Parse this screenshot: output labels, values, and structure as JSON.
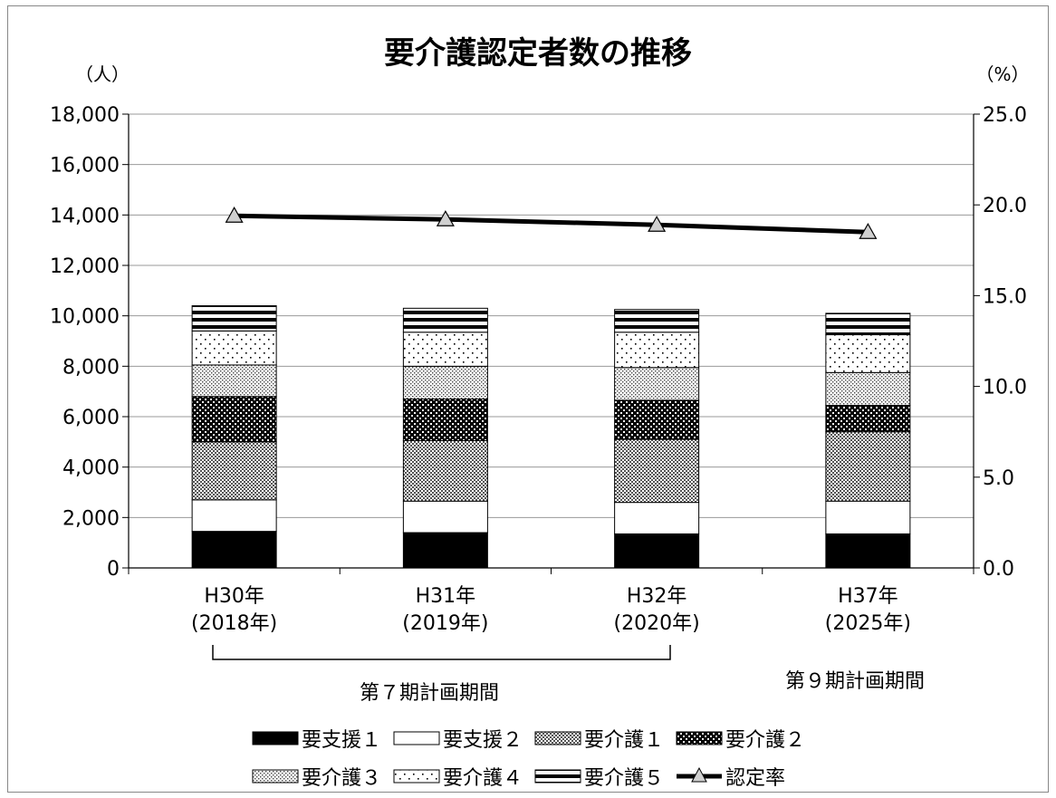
{
  "chart_data": {
    "type": "bar",
    "title": "要介護認定者数の推移",
    "y_left_unit": "（人）",
    "y_right_unit": "（%）",
    "ylim": [
      0,
      18000
    ],
    "y2lim": [
      0,
      25
    ],
    "y_ticks": [
      "0",
      "2,000",
      "4,000",
      "6,000",
      "8,000",
      "10,000",
      "12,000",
      "14,000",
      "16,000",
      "18,000"
    ],
    "y2_ticks": [
      "0.0",
      "5.0",
      "10.0",
      "15.0",
      "20.0",
      "25.0"
    ],
    "categories": [
      {
        "line1": "H30年",
        "line2": "(2018年)"
      },
      {
        "line1": "H31年",
        "line2": "(2019年)"
      },
      {
        "line1": "H32年",
        "line2": "(2020年)"
      },
      {
        "line1": "H37年",
        "line2": "(2025年)"
      }
    ],
    "series": [
      {
        "name": "要支援１",
        "pattern": "solid-black",
        "values": [
          1450,
          1400,
          1350,
          1350
        ]
      },
      {
        "name": "要支援２",
        "pattern": "white",
        "values": [
          1250,
          1250,
          1250,
          1300
        ]
      },
      {
        "name": "要介護１",
        "pattern": "checker",
        "values": [
          2300,
          2400,
          2500,
          2750
        ]
      },
      {
        "name": "要介護２",
        "pattern": "dense-dots",
        "values": [
          1800,
          1650,
          1550,
          1050
        ]
      },
      {
        "name": "要介護３",
        "pattern": "fine-dots",
        "values": [
          1250,
          1300,
          1300,
          1300
        ]
      },
      {
        "name": "要介護４",
        "pattern": "sparse-dots",
        "values": [
          1350,
          1350,
          1400,
          1500
        ]
      },
      {
        "name": "要介護５",
        "pattern": "horizontal-stripes",
        "values": [
          1000,
          950,
          900,
          850
        ]
      }
    ],
    "line_series": {
      "name": "認定率",
      "marker": "triangle",
      "values": [
        19.4,
        19.2,
        18.9,
        18.5
      ]
    },
    "legend_position": "bottom",
    "grid": true
  },
  "annotations": {
    "period7": "第７期計画期間",
    "period9": "第９期計画期間"
  }
}
